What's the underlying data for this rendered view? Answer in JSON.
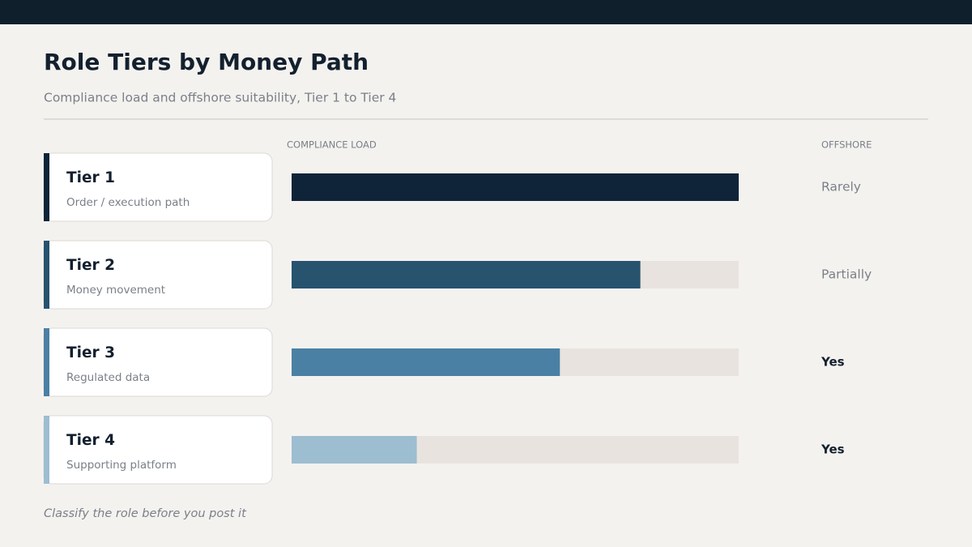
{
  "chart_data": {
    "type": "bar",
    "orientation": "horizontal",
    "title": "Role Tiers by Money Path",
    "subtitle": "Compliance load and offshore suitability, Tier 1 to Tier 4",
    "value_header": "COMPLIANCE LOAD",
    "offshore_header": "OFFSHORE",
    "categories": [
      "Tier 1",
      "Tier 2",
      "Tier 3",
      "Tier 4"
    ],
    "descriptions": [
      "Order / execution path",
      "Money movement",
      "Regulated data",
      "Supporting platform"
    ],
    "values": [
      100,
      78,
      60,
      28
    ],
    "colors": [
      "#0f2438",
      "#27536f",
      "#4a80a4",
      "#9dbdd0"
    ],
    "xlim": [
      0,
      100
    ],
    "offshore": [
      "Rarely",
      "Partially",
      "Yes",
      "Yes"
    ],
    "offshore_bold": [
      false,
      false,
      true,
      true
    ],
    "footnote": "Classify the role before you post it"
  }
}
